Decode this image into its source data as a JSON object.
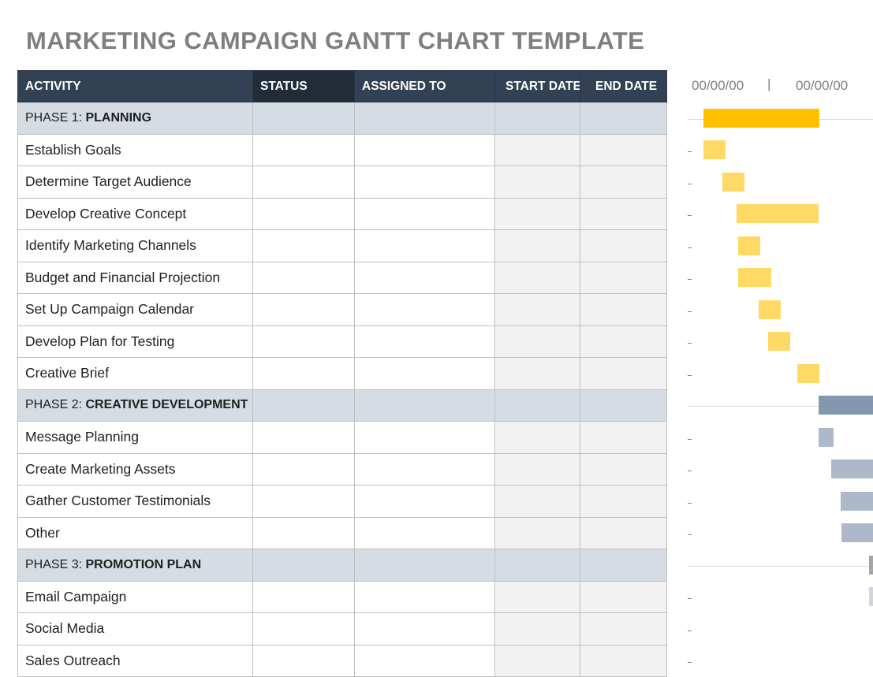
{
  "title": "MARKETING CAMPAIGN GANTT CHART TEMPLATE",
  "columns": {
    "activity": "ACTIVITY",
    "status": "STATUS",
    "assigned_to": "ASSIGNED TO",
    "start_date": "START DATE",
    "end_date": "END DATE"
  },
  "gantt": {
    "start_label": "00/00/00",
    "separator": "|",
    "end_label": "00/00/00"
  },
  "phases": [
    {
      "prefix": "PHASE 1:",
      "name": "PLANNING",
      "color": "#ffc000",
      "task_color": "#ffd966",
      "tasks": [
        "Establish Goals",
        "Determine Target Audience",
        "Develop Creative Concept",
        "Identify Marketing Channels",
        "Budget and Financial Projection",
        "Set Up Campaign Calendar",
        "Develop Plan for Testing",
        "Creative Brief"
      ]
    },
    {
      "prefix": "PHASE 2:",
      "name": "CREATIVE DEVELOPMENT",
      "color": "#8497b0",
      "task_color": "#adb9ca",
      "tasks": [
        "Message Planning",
        "Create Marketing Assets",
        "Gather Customer Testimonials",
        "Other"
      ]
    },
    {
      "prefix": "PHASE 3:",
      "name": "PROMOTION PLAN",
      "color": "#a6a6a6",
      "task_color": "#d0d5de",
      "tasks": [
        "Email Campaign",
        "Social Media",
        "Sales Outreach"
      ]
    }
  ],
  "task_dash": "-"
}
